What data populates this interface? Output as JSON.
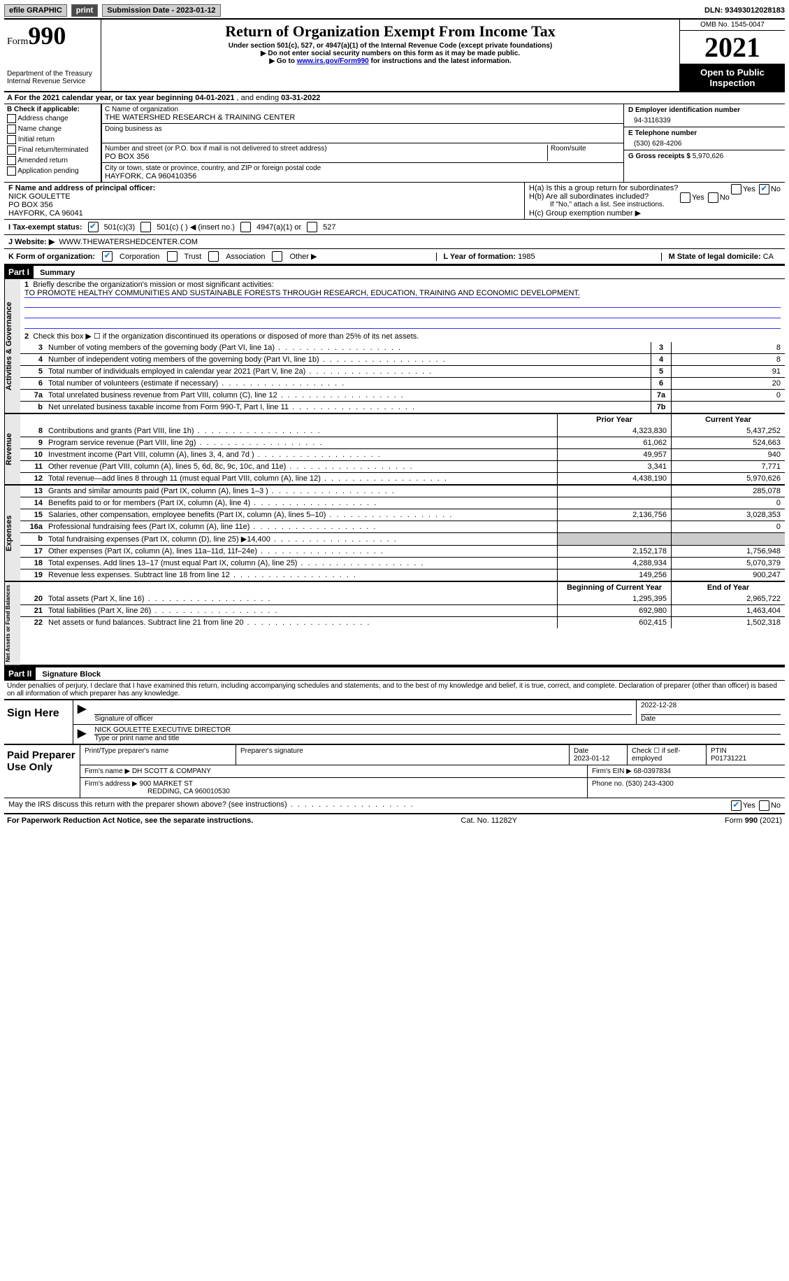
{
  "topbar": {
    "efile": "efile GRAPHIC",
    "print": "print",
    "submission_label": "Submission Date - ",
    "submission_date": "2023-01-12",
    "dln_label": "DLN: ",
    "dln": "93493012028183"
  },
  "header": {
    "form_word": "Form",
    "form_num": "990",
    "dept": "Department of the Treasury",
    "irs": "Internal Revenue Service",
    "title": "Return of Organization Exempt From Income Tax",
    "subtitle": "Under section 501(c), 527, or 4947(a)(1) of the Internal Revenue Code (except private foundations)",
    "note1": "▶ Do not enter social security numbers on this form as it may be made public.",
    "note2_pre": "▶ Go to ",
    "note2_link": "www.irs.gov/Form990",
    "note2_post": " for instructions and the latest information.",
    "omb": "OMB No. 1545-0047",
    "year": "2021",
    "otp": "Open to Public Inspection"
  },
  "row_a": {
    "text": "A For the 2021 calendar year, or tax year beginning ",
    "begin": "04-01-2021",
    "mid": "   , and ending ",
    "end": "03-31-2022"
  },
  "section_b": {
    "label": "B Check if applicable:",
    "items": [
      "Address change",
      "Name change",
      "Initial return",
      "Final return/terminated",
      "Amended return",
      "Application pending"
    ],
    "c_label": "C Name of organization",
    "c_name": "THE WATERSHED RESEARCH & TRAINING CENTER",
    "dba_label": "Doing business as",
    "addr_label": "Number and street (or P.O. box if mail is not delivered to street address)",
    "room_label": "Room/suite",
    "addr": "PO BOX 356",
    "city_label": "City or town, state or province, country, and ZIP or foreign postal code",
    "city": "HAYFORK, CA  960410356",
    "d_label": "D Employer identification number",
    "d_ein": "94-3116339",
    "e_label": "E Telephone number",
    "e_phone": "(530) 628-4206",
    "g_label": "G Gross receipts $ ",
    "g_val": "5,970,626"
  },
  "section_f": {
    "f_label": "F Name and address of principal officer:",
    "f_name": "NICK GOULETTE",
    "f_addr1": "PO BOX 356",
    "f_addr2": "HAYFORK, CA  96041",
    "ha": "H(a)  Is this a group return for subordinates?",
    "hb": "H(b)  Are all subordinates included?",
    "h_note": "If \"No,\" attach a list. See instructions.",
    "hc": "H(c)  Group exemption number ▶"
  },
  "row_i": {
    "label": "I  Tax-exempt status:",
    "o1": "501(c)(3)",
    "o2": "501(c) (  ) ◀ (insert no.)",
    "o3": "4947(a)(1) or",
    "o4": "527"
  },
  "row_j": {
    "label": "J  Website: ▶",
    "val": "WWW.THEWATERSHEDCENTER.COM"
  },
  "row_k": {
    "label": "K Form of organization:",
    "o1": "Corporation",
    "o2": "Trust",
    "o3": "Association",
    "o4": "Other ▶",
    "l": "L Year of formation: ",
    "l_val": "1985",
    "m": "M State of legal domicile: ",
    "m_val": "CA"
  },
  "part1": {
    "hdr": "Part I",
    "title": "Summary",
    "l1_label": "Briefly describe the organization's mission or most significant activities:",
    "l1_text": "TO PROMOTE HEALTHY COMMUNITIES AND SUSTAINABLE FORESTS THROUGH RESEARCH, EDUCATION, TRAINING AND ECONOMIC DEVELOPMENT.",
    "l2": "Check this box ▶ ☐ if the organization discontinued its operations or disposed of more than 25% of its net assets.",
    "vtab_gov": "Activities & Governance",
    "vtab_rev": "Revenue",
    "vtab_exp": "Expenses",
    "vtab_net": "Net Assets or Fund Balances",
    "hdr_prior": "Prior Year",
    "hdr_curr": "Current Year",
    "hdr_boy": "Beginning of Current Year",
    "hdr_eoy": "End of Year",
    "lines_gov": [
      {
        "n": "3",
        "t": "Number of voting members of the governing body (Part VI, line 1a)",
        "b": "3",
        "v": "8"
      },
      {
        "n": "4",
        "t": "Number of independent voting members of the governing body (Part VI, line 1b)",
        "b": "4",
        "v": "8"
      },
      {
        "n": "5",
        "t": "Total number of individuals employed in calendar year 2021 (Part V, line 2a)",
        "b": "5",
        "v": "91"
      },
      {
        "n": "6",
        "t": "Total number of volunteers (estimate if necessary)",
        "b": "6",
        "v": "20"
      },
      {
        "n": "7a",
        "t": "Total unrelated business revenue from Part VIII, column (C), line 12",
        "b": "7a",
        "v": "0"
      },
      {
        "n": "b",
        "t": "Net unrelated business taxable income from Form 990-T, Part I, line 11",
        "b": "7b",
        "v": ""
      }
    ],
    "lines_rev": [
      {
        "n": "8",
        "t": "Contributions and grants (Part VIII, line 1h)",
        "p": "4,323,830",
        "c": "5,437,252"
      },
      {
        "n": "9",
        "t": "Program service revenue (Part VIII, line 2g)",
        "p": "61,062",
        "c": "524,663"
      },
      {
        "n": "10",
        "t": "Investment income (Part VIII, column (A), lines 3, 4, and 7d )",
        "p": "49,957",
        "c": "940"
      },
      {
        "n": "11",
        "t": "Other revenue (Part VIII, column (A), lines 5, 6d, 8c, 9c, 10c, and 11e)",
        "p": "3,341",
        "c": "7,771"
      },
      {
        "n": "12",
        "t": "Total revenue—add lines 8 through 11 (must equal Part VIII, column (A), line 12)",
        "p": "4,438,190",
        "c": "5,970,626"
      }
    ],
    "lines_exp": [
      {
        "n": "13",
        "t": "Grants and similar amounts paid (Part IX, column (A), lines 1–3 )",
        "p": "",
        "c": "285,078"
      },
      {
        "n": "14",
        "t": "Benefits paid to or for members (Part IX, column (A), line 4)",
        "p": "",
        "c": "0"
      },
      {
        "n": "15",
        "t": "Salaries, other compensation, employee benefits (Part IX, column (A), lines 5–10)",
        "p": "2,136,756",
        "c": "3,028,353"
      },
      {
        "n": "16a",
        "t": "Professional fundraising fees (Part IX, column (A), line 11e)",
        "p": "",
        "c": "0"
      },
      {
        "n": "b",
        "t": "Total fundraising expenses (Part IX, column (D), line 25) ▶14,400",
        "p": "SHADE",
        "c": "SHADE"
      },
      {
        "n": "17",
        "t": "Other expenses (Part IX, column (A), lines 11a–11d, 11f–24e)",
        "p": "2,152,178",
        "c": "1,756,948"
      },
      {
        "n": "18",
        "t": "Total expenses. Add lines 13–17 (must equal Part IX, column (A), line 25)",
        "p": "4,288,934",
        "c": "5,070,379"
      },
      {
        "n": "19",
        "t": "Revenue less expenses. Subtract line 18 from line 12",
        "p": "149,256",
        "c": "900,247"
      }
    ],
    "lines_net": [
      {
        "n": "20",
        "t": "Total assets (Part X, line 16)",
        "p": "1,295,395",
        "c": "2,965,722"
      },
      {
        "n": "21",
        "t": "Total liabilities (Part X, line 26)",
        "p": "692,980",
        "c": "1,463,404"
      },
      {
        "n": "22",
        "t": "Net assets or fund balances. Subtract line 21 from line 20",
        "p": "602,415",
        "c": "1,502,318"
      }
    ]
  },
  "part2": {
    "hdr": "Part II",
    "title": "Signature Block",
    "decl": "Under penalties of perjury, I declare that I have examined this return, including accompanying schedules and statements, and to the best of my knowledge and belief, it is true, correct, and complete. Declaration of preparer (other than officer) is based on all information of which preparer has any knowledge.",
    "sign_here": "Sign Here",
    "sig_officer": "Signature of officer",
    "sig_date": "2022-12-28",
    "date_label": "Date",
    "name_title": "NICK GOULETTE  EXECUTIVE DIRECTOR",
    "type_label": "Type or print name and title"
  },
  "preparer": {
    "label": "Paid Preparer Use Only",
    "h1": "Print/Type preparer's name",
    "h2": "Preparer's signature",
    "h3": "Date",
    "h3v": "2023-01-12",
    "h4": "Check ☐ if self-employed",
    "h5": "PTIN",
    "h5v": "P01731221",
    "firm_label": "Firm's name    ▶ ",
    "firm": "DH SCOTT & COMPANY",
    "firm_ein_label": "Firm's EIN ▶ ",
    "firm_ein": "68-0397834",
    "addr_label": "Firm's address ▶ ",
    "addr1": "900 MARKET ST",
    "addr2": "REDDING, CA  960010530",
    "phone_label": "Phone no. ",
    "phone": "(530) 243-4300"
  },
  "may": {
    "q": "May the IRS discuss this return with the preparer shown above? (see instructions)",
    "yes": "Yes",
    "no": "No"
  },
  "footer": {
    "left": "For Paperwork Reduction Act Notice, see the separate instructions.",
    "mid": "Cat. No. 11282Y",
    "right": "Form 990 (2021)"
  },
  "colors": {
    "link": "#0000cc",
    "check": "#1976d2",
    "shade": "#cccccc"
  }
}
